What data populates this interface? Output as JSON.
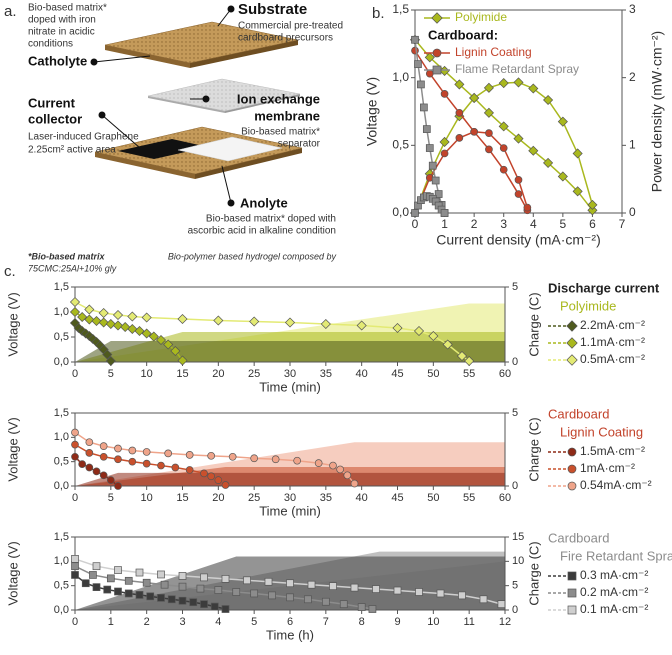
{
  "panel_labels": [
    "a.",
    "b.",
    "c."
  ],
  "diagram": {
    "catholyte_note": [
      "Bio-based matrix*",
      "doped with iron",
      "nitrate in acidic",
      "conditions"
    ],
    "substrate_title": "Substrate",
    "substrate_note": [
      "Commercial pre-treated",
      "cardboard precursors"
    ],
    "catholyte_title": "Catholyte",
    "membrane_title": [
      "Ion exchange",
      "membrane"
    ],
    "membrane_note": [
      "Bio-based matrix*",
      "separator"
    ],
    "collector_title": [
      "Current",
      "collector"
    ],
    "collector_note": [
      "Laser-induced Graphene",
      "2.25cm² active area"
    ],
    "anolyte_title": "Anolyte",
    "anolyte_note": [
      "Bio-based matrix* doped with",
      "ascorbic acid in alkaline condition"
    ],
    "footnote": [
      "*Bio-based matrix",
      "Bio-polymer based hydrogel composed by",
      "75CMC:25Al+10% gly"
    ]
  },
  "chart_data": [
    {
      "type": "line",
      "xlabel": "Current density (mA·cm⁻²)",
      "ylabel": "Voltage (V)",
      "y2label": "Power density (mW·cm⁻²)",
      "xlim": [
        0,
        7
      ],
      "xticks": [
        0,
        1,
        2,
        3,
        4,
        5,
        6,
        7
      ],
      "ylim": [
        0,
        1.5
      ],
      "yticks": [
        {
          "value": 0,
          "label": "0,0"
        },
        {
          "value": 0.5,
          "label": "0,5"
        },
        {
          "value": 1,
          "label": "1,0"
        },
        {
          "value": 1.5,
          "label": "1,5"
        }
      ],
      "y2lim": [
        0,
        3
      ],
      "y2ticks": [
        0,
        1,
        2,
        3
      ],
      "legend_header": "Cardboard:",
      "series": [
        {
          "name": "Polyimide",
          "color": "#a9b81e",
          "marker": "diamond",
          "x": [
            0,
            0.5,
            1,
            1.5,
            2,
            2.5,
            3,
            3.5,
            4,
            4.5,
            5,
            5.5,
            6
          ],
          "values": [
            1.28,
            1.15,
            1.05,
            0.95,
            0.85,
            0.74,
            0.64,
            0.55,
            0.46,
            0.37,
            0.27,
            0.16,
            0.02
          ],
          "power": [
            0,
            0.58,
            1.05,
            1.43,
            1.7,
            1.85,
            1.92,
            1.93,
            1.84,
            1.67,
            1.35,
            0.88,
            0.12
          ]
        },
        {
          "name": "Lignin Coating",
          "color": "#c2432b",
          "marker": "circle",
          "x": [
            0,
            0.5,
            1,
            1.5,
            2,
            2.5,
            3,
            3.5,
            3.8
          ],
          "values": [
            1.2,
            1.03,
            0.88,
            0.74,
            0.6,
            0.47,
            0.32,
            0.14,
            0.02
          ],
          "power": [
            0,
            0.52,
            0.88,
            1.11,
            1.2,
            1.18,
            0.96,
            0.49,
            0.08
          ]
        },
        {
          "name": "Flame Retardant Spray",
          "color": "#8c8c8c",
          "marker": "square",
          "x": [
            0,
            0.1,
            0.2,
            0.3,
            0.4,
            0.5,
            0.6,
            0.7,
            0.8,
            0.9,
            1.0
          ],
          "values": [
            1.28,
            1.1,
            0.95,
            0.78,
            0.62,
            0.48,
            0.35,
            0.24,
            0.14,
            0.06,
            0
          ],
          "power": [
            0,
            0.11,
            0.19,
            0.23,
            0.25,
            0.24,
            0.21,
            0.17,
            0.11,
            0.05,
            0
          ]
        }
      ]
    },
    {
      "type": "line",
      "xlabel": "Time (min)",
      "ylabel": "Voltage (V)",
      "y2label": "Charge (C)",
      "xlim": [
        0,
        60
      ],
      "xticks": [
        0,
        5,
        10,
        15,
        20,
        25,
        30,
        35,
        40,
        45,
        50,
        55,
        60
      ],
      "ylim": [
        0,
        1.5
      ],
      "yticks": [
        {
          "value": 0,
          "label": "0,0"
        },
        {
          "value": 0.5,
          "label": "0,5"
        },
        {
          "value": 1,
          "label": "1,0"
        },
        {
          "value": 1.5,
          "label": "1,5"
        }
      ],
      "y2lim": [
        0,
        5
      ],
      "y2ticks": [
        0,
        5
      ],
      "legend_title": [
        "Discharge current",
        "Polyimide"
      ],
      "legend_title_colors": [
        "#222222",
        "#a9b81e"
      ],
      "series": [
        {
          "name": "2.2mA·cm⁻²",
          "color": "#4f5a1e",
          "marker": "diamond",
          "x": [
            0,
            0.5,
            1,
            1.5,
            2,
            2.5,
            3,
            3.5,
            4,
            4.5,
            5
          ],
          "values": [
            0.78,
            0.68,
            0.62,
            0.57,
            0.52,
            0.46,
            0.4,
            0.33,
            0.25,
            0.15,
            0.02
          ],
          "charge_x": [
            0,
            5,
            60
          ],
          "charge": [
            0,
            1.4,
            1.4
          ]
        },
        {
          "name": "1.1mA·cm⁻²",
          "color": "#a9b81e",
          "marker": "diamond",
          "x": [
            0,
            1,
            2,
            3,
            4,
            5,
            6,
            7,
            8,
            9,
            10,
            11,
            12,
            13,
            14,
            15
          ],
          "values": [
            1.0,
            0.9,
            0.85,
            0.82,
            0.79,
            0.76,
            0.73,
            0.7,
            0.66,
            0.62,
            0.57,
            0.51,
            0.44,
            0.35,
            0.22,
            0.03
          ],
          "charge_x": [
            0,
            15,
            60
          ],
          "charge": [
            0,
            2.0,
            2.0
          ]
        },
        {
          "name": "0.5mA·cm⁻²",
          "color": "#e3ea74",
          "marker": "diamond",
          "x": [
            0,
            2,
            4,
            6,
            8,
            10,
            15,
            20,
            25,
            30,
            35,
            40,
            45,
            48,
            50,
            52,
            54,
            55
          ],
          "values": [
            1.2,
            1.05,
            0.98,
            0.94,
            0.91,
            0.89,
            0.86,
            0.83,
            0.81,
            0.79,
            0.76,
            0.73,
            0.68,
            0.62,
            0.52,
            0.35,
            0.12,
            0.02
          ],
          "charge_x": [
            0,
            55,
            60
          ],
          "charge": [
            0,
            3.9,
            3.9
          ]
        }
      ]
    },
    {
      "type": "line",
      "xlabel": "Time (min)",
      "ylabel": "Voltage (V)",
      "y2label": "Charge (C)",
      "xlim": [
        0,
        60
      ],
      "xticks": [
        0,
        5,
        10,
        15,
        20,
        25,
        30,
        35,
        40,
        45,
        50,
        55,
        60
      ],
      "ylim": [
        0,
        1.5
      ],
      "yticks": [
        {
          "value": 0,
          "label": "0,0"
        },
        {
          "value": 0.5,
          "label": "0,5"
        },
        {
          "value": 1,
          "label": "1,0"
        },
        {
          "value": 1.5,
          "label": "1,5"
        }
      ],
      "y2lim": [
        0,
        5
      ],
      "y2ticks": [
        0,
        5
      ],
      "legend_title": [
        "Cardboard",
        "Lignin Coating"
      ],
      "legend_title_colors": [
        "#c2432b",
        "#c2432b"
      ],
      "series": [
        {
          "name": "1.5mA·cm⁻²",
          "color": "#8e2a17",
          "marker": "circle",
          "x": [
            0,
            1,
            2,
            3,
            4,
            5,
            6
          ],
          "values": [
            0.6,
            0.45,
            0.38,
            0.3,
            0.22,
            0.12,
            0
          ],
          "charge_x": [
            0,
            6,
            60
          ],
          "charge": [
            0,
            0.9,
            0.9
          ]
        },
        {
          "name": "1mA·cm⁻²",
          "color": "#c9502c",
          "marker": "circle",
          "x": [
            0,
            2,
            4,
            6,
            8,
            10,
            12,
            14,
            16,
            18,
            19,
            20,
            21
          ],
          "values": [
            0.85,
            0.68,
            0.6,
            0.55,
            0.5,
            0.46,
            0.42,
            0.38,
            0.33,
            0.26,
            0.2,
            0.12,
            0.02
          ],
          "charge_x": [
            0,
            21,
            60
          ],
          "charge": [
            0,
            1.3,
            1.3
          ]
        },
        {
          "name": "0.54mA·cm⁻²",
          "color": "#efa48a",
          "marker": "circle",
          "x": [
            0,
            2,
            4,
            6,
            8,
            10,
            13,
            16,
            19,
            22,
            25,
            28,
            31,
            34,
            36,
            37,
            38,
            39
          ],
          "values": [
            1.1,
            0.9,
            0.82,
            0.77,
            0.73,
            0.7,
            0.67,
            0.64,
            0.62,
            0.6,
            0.57,
            0.55,
            0.52,
            0.47,
            0.42,
            0.34,
            0.22,
            0.05
          ],
          "charge_x": [
            0,
            39,
            60
          ],
          "charge": [
            0,
            3.0,
            3.0
          ]
        }
      ]
    },
    {
      "type": "line",
      "xlabel": "Time (h)",
      "ylabel": "Voltage (V)",
      "y2label": "Charge (C)",
      "xlim": [
        0,
        12
      ],
      "xticks": [
        0,
        1,
        2,
        3,
        4,
        5,
        6,
        7,
        8,
        9,
        10,
        11,
        12
      ],
      "ylim": [
        0,
        1.5
      ],
      "yticks": [
        {
          "value": 0,
          "label": "0,0"
        },
        {
          "value": 0.5,
          "label": "0,5"
        },
        {
          "value": 1,
          "label": "1,0"
        },
        {
          "value": 1.5,
          "label": "1,5"
        }
      ],
      "y2lim": [
        0,
        15
      ],
      "y2ticks": [
        0,
        5,
        10,
        15
      ],
      "legend_title": [
        "Cardboard",
        "Fire Retardant Spray"
      ],
      "legend_title_colors": [
        "#8c8c8c",
        "#8c8c8c"
      ],
      "series": [
        {
          "name": "0.3 mA·cm⁻²",
          "color": "#3c3c3c",
          "marker": "square",
          "x": [
            0,
            0.3,
            0.6,
            0.9,
            1.2,
            1.5,
            1.8,
            2.1,
            2.4,
            2.7,
            3,
            3.3,
            3.6,
            3.9,
            4.2
          ],
          "values": [
            0.72,
            0.55,
            0.47,
            0.42,
            0.38,
            0.34,
            0.31,
            0.28,
            0.25,
            0.22,
            0.19,
            0.16,
            0.12,
            0.07,
            0.02
          ],
          "charge_x": [
            0,
            4.5,
            12
          ],
          "charge": [
            0,
            11,
            11
          ]
        },
        {
          "name": "0.2 mA·cm⁻²",
          "color": "#8c8c8c",
          "marker": "square",
          "x": [
            0,
            0.5,
            1,
            1.5,
            2,
            2.5,
            3,
            3.5,
            4,
            4.5,
            5,
            5.5,
            6,
            6.5,
            7,
            7.5,
            8,
            8.3
          ],
          "values": [
            0.9,
            0.72,
            0.65,
            0.6,
            0.56,
            0.52,
            0.48,
            0.44,
            0.41,
            0.37,
            0.34,
            0.3,
            0.26,
            0.22,
            0.17,
            0.12,
            0.06,
            0.02
          ],
          "charge_x": [
            0,
            8.5,
            12
          ],
          "charge": [
            0,
            12,
            12
          ]
        },
        {
          "name": "0.1 mA·cm⁻²",
          "color": "#cfcfcf",
          "marker": "square",
          "x": [
            0,
            0.6,
            1.2,
            1.8,
            2.4,
            3,
            3.6,
            4.2,
            4.8,
            5.4,
            6,
            6.6,
            7.2,
            7.8,
            8.4,
            9,
            9.6,
            10.2,
            10.8,
            11.4,
            11.9
          ],
          "values": [
            1.05,
            0.9,
            0.82,
            0.77,
            0.73,
            0.7,
            0.67,
            0.64,
            0.61,
            0.58,
            0.55,
            0.52,
            0.49,
            0.46,
            0.43,
            0.4,
            0.37,
            0.34,
            0.3,
            0.22,
            0.12
          ],
          "charge_x": [
            0,
            12
          ],
          "charge": [
            0,
            10
          ]
        }
      ]
    }
  ]
}
